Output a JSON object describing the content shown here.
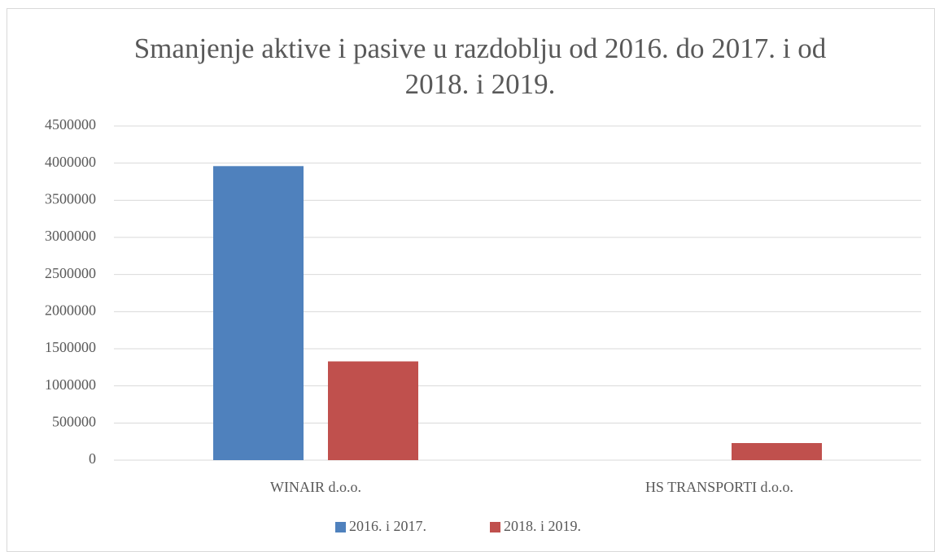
{
  "chart_data": {
    "type": "bar",
    "title": "Smanjenje aktive i pasive u razdoblju od 2016. do 2017. i od 2018. i 2019.",
    "categories": [
      "WINAIR d.o.o.",
      "HS TRANSPORTI d.o.o."
    ],
    "series": [
      {
        "name": "2016. i 2017.",
        "color": "#4f81bd",
        "values": [
          3960000,
          0
        ]
      },
      {
        "name": "2018. i 2019.",
        "color": "#c0504d",
        "values": [
          1330000,
          230000
        ]
      }
    ],
    "ylim": [
      0,
      4500000
    ],
    "yticks": [
      0,
      500000,
      1000000,
      1500000,
      2000000,
      2500000,
      3000000,
      3500000,
      4000000,
      4500000
    ],
    "grid": true,
    "legend": "bottom"
  }
}
